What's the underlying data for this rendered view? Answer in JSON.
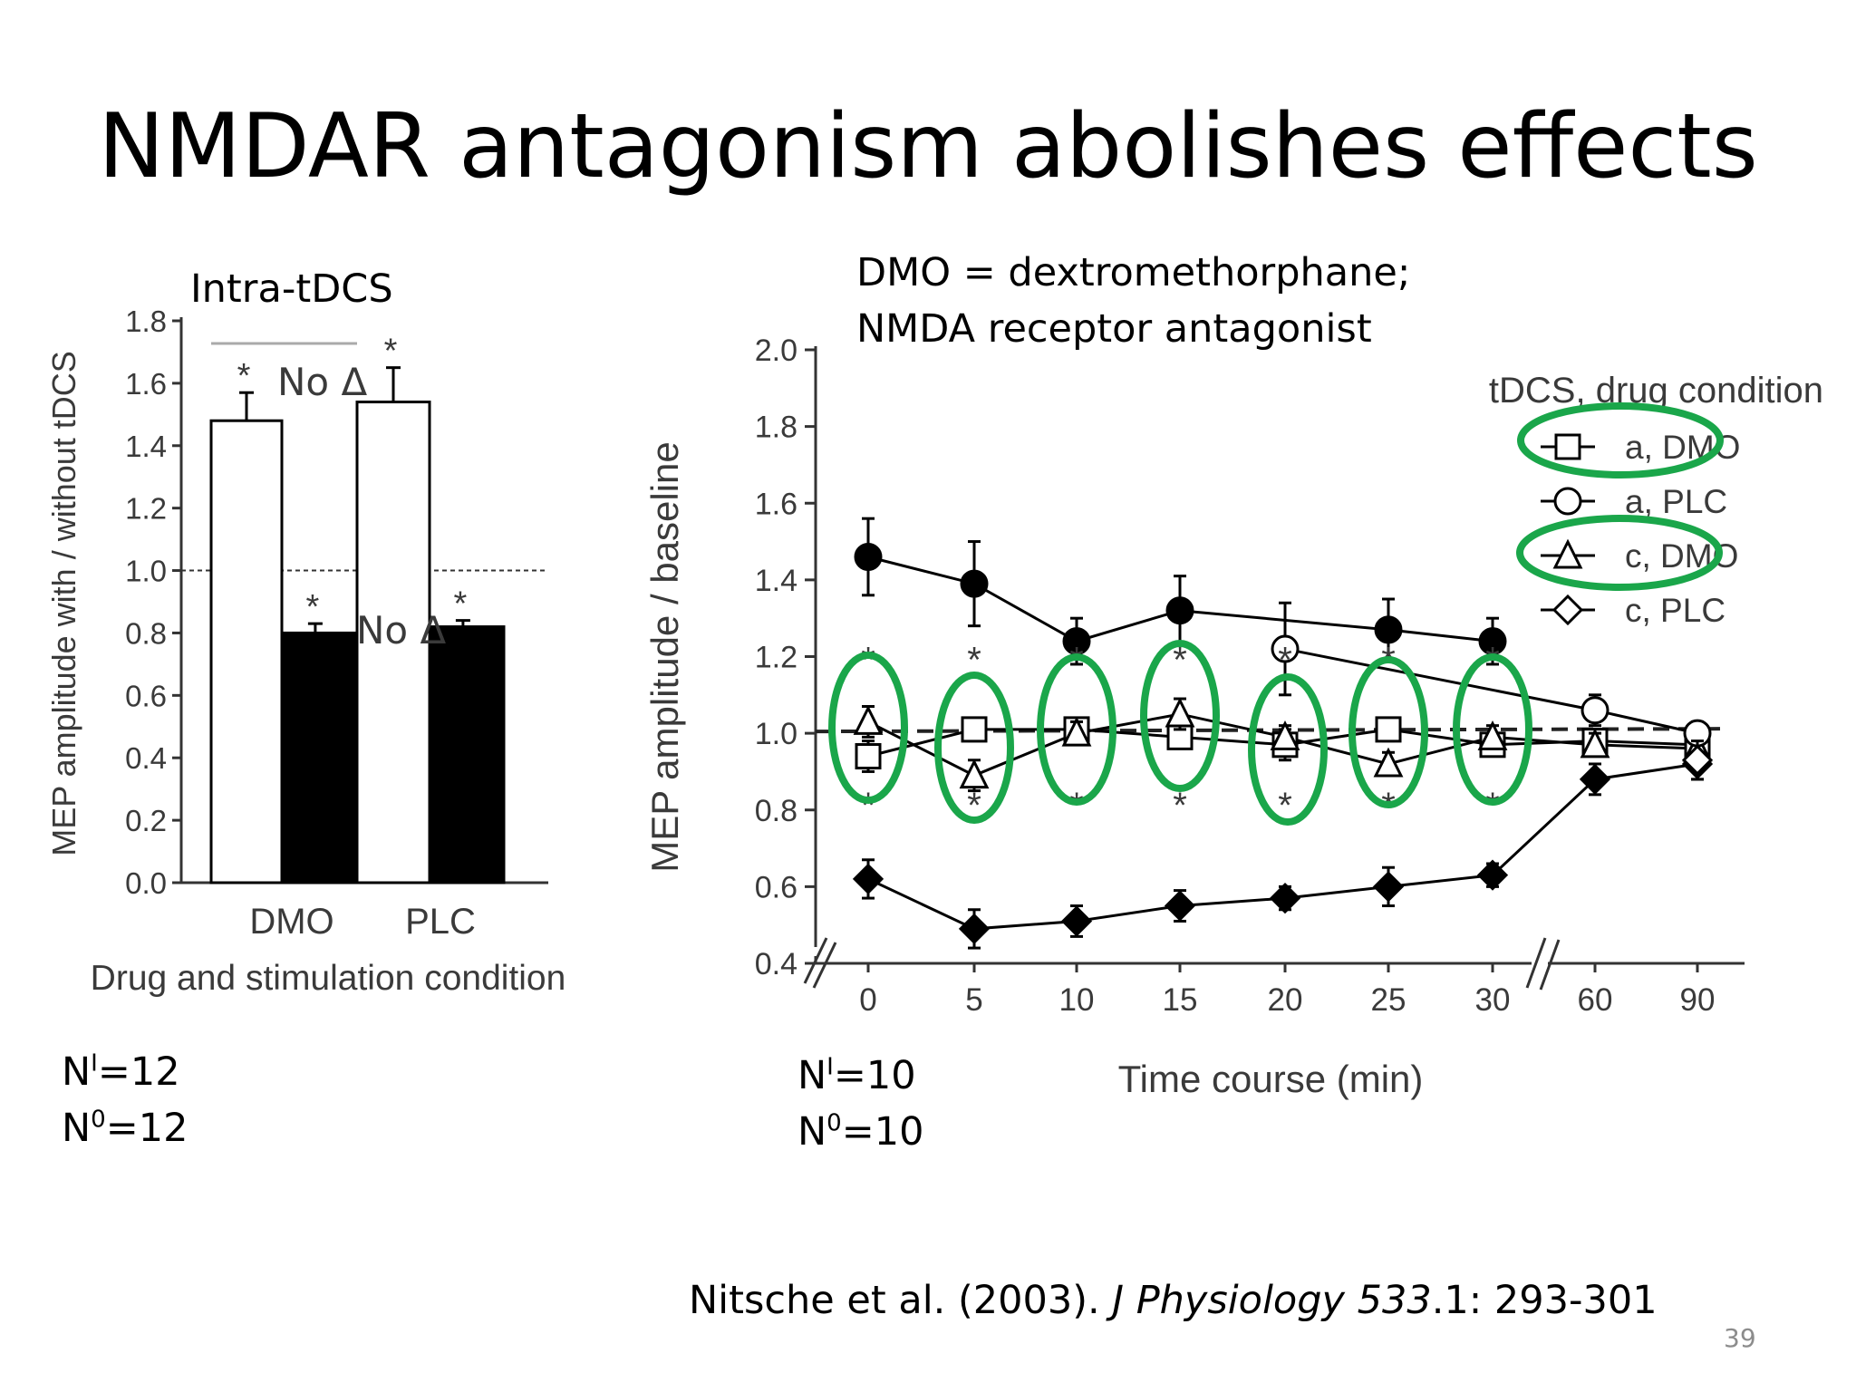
{
  "slide": {
    "title": "NMDAR antagonism abolishes effects",
    "bar_panel_label": "Intra-tDCS",
    "drug_note_line1": "DMO = dextromethorphane;",
    "drug_note_line2": "NMDA receptor antagonist",
    "n_left": [
      {
        "base": "N",
        "sup": "I",
        "value": "=12"
      },
      {
        "base": "N",
        "sup": "0",
        "value": "=12"
      }
    ],
    "n_right": [
      {
        "base": "N",
        "sup": "I",
        "value": "=10"
      },
      {
        "base": "N",
        "sup": "0",
        "value": "=10"
      }
    ],
    "citation": {
      "authors": "Nitsche et al. (2003). ",
      "journal": "J Physiology 533",
      "pages": ".1: 293-301"
    },
    "page_number": "39",
    "annotation_no_change": "No Δ",
    "highlight_color": "#1aa64a",
    "annotation_color": "#e8141c"
  },
  "chart_data": [
    {
      "type": "bar",
      "xlabel": "Drug and stimulation condition",
      "ylabel": "MEP amplitude with / without tDCS",
      "ylim": [
        0,
        1.8
      ],
      "yticks": [
        "0.0",
        "0.2",
        "0.4",
        "0.6",
        "0.8",
        "1.0",
        "1.2",
        "1.4",
        "1.6",
        "1.8"
      ],
      "categories": [
        "DMO",
        "PLC"
      ],
      "reference_line": 1.0,
      "bars": [
        {
          "category": "DMO",
          "fill": "white",
          "value": 1.48,
          "error": 0.09,
          "significance": "*"
        },
        {
          "category": "DMO",
          "fill": "black",
          "value": 0.8,
          "error": 0.03,
          "significance": "*"
        },
        {
          "category": "PLC",
          "fill": "white",
          "value": 1.54,
          "error": 0.11,
          "significance": "*"
        },
        {
          "category": "PLC",
          "fill": "black",
          "value": 0.82,
          "error": 0.02,
          "significance": "*"
        }
      ]
    },
    {
      "type": "line",
      "xlabel": "Time course (min)",
      "ylabel": "MEP amplitude / baseline",
      "ylim": [
        0.4,
        2.0
      ],
      "yticks": [
        "0.4",
        "0.6",
        "0.8",
        "1.0",
        "1.2",
        "1.4",
        "1.6",
        "1.8",
        "2.0"
      ],
      "x": [
        "0",
        "5",
        "10",
        "15",
        "20",
        "25",
        "30",
        "60",
        "90"
      ],
      "axis_break": "between 30 and 60",
      "reference_line": 1.0,
      "legend_title": "tDCS, drug condition",
      "legend_position": "top-right",
      "series": [
        {
          "name": "a, DMO",
          "marker": "square-open",
          "values": [
            0.94,
            1.01,
            1.01,
            0.99,
            0.97,
            1.01,
            0.97,
            0.98,
            0.97
          ],
          "errors": [
            0.04,
            0.03,
            0.03,
            0.03,
            0.04,
            0.03,
            0.03,
            0.03,
            0.03
          ]
        },
        {
          "name": "a, PLC",
          "marker": "circle-open",
          "values": [
            null,
            null,
            null,
            null,
            1.22,
            null,
            null,
            1.06,
            1.0
          ],
          "errors": [
            null,
            null,
            null,
            null,
            0.12,
            null,
            null,
            0.04,
            0.03
          ]
        },
        {
          "name": "c, DMO",
          "marker": "triangle-open",
          "values": [
            1.03,
            0.89,
            1.0,
            1.05,
            0.99,
            0.92,
            0.99,
            0.97,
            0.96
          ],
          "errors": [
            0.04,
            0.04,
            0.03,
            0.04,
            0.03,
            0.03,
            0.03,
            0.03,
            0.04
          ]
        },
        {
          "name": "c, PLC",
          "marker": "diamond-open",
          "values": [
            null,
            null,
            null,
            null,
            null,
            null,
            null,
            null,
            0.93
          ],
          "errors": [
            null,
            null,
            null,
            null,
            null,
            null,
            null,
            null,
            0.05
          ]
        },
        {
          "name": "",
          "marker": "circle-filled",
          "values": [
            1.46,
            1.39,
            1.24,
            1.32,
            null,
            1.27,
            1.24,
            null,
            null
          ],
          "errors": [
            0.1,
            0.11,
            0.06,
            0.09,
            null,
            0.08,
            0.06,
            null,
            null
          ]
        },
        {
          "name": "",
          "marker": "diamond-filled",
          "values": [
            0.62,
            0.49,
            0.51,
            0.55,
            0.57,
            0.6,
            0.63,
            0.88,
            0.92
          ],
          "errors": [
            0.05,
            0.05,
            0.04,
            0.04,
            0.03,
            0.05,
            0.03,
            0.04,
            0.04
          ]
        }
      ],
      "highlighted_x": [
        "0",
        "5",
        "10",
        "15",
        "20",
        "25",
        "30"
      ]
    }
  ]
}
